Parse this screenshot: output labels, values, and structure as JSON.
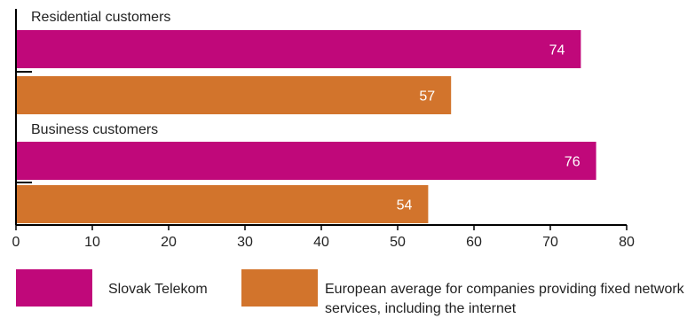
{
  "chart_data": {
    "type": "bar",
    "orientation": "horizontal",
    "groups": [
      {
        "label": "Residential customers",
        "values": [
          74,
          57
        ]
      },
      {
        "label": "Business customers",
        "values": [
          76,
          54
        ]
      }
    ],
    "series": [
      {
        "name": "Slovak Telekom",
        "color": "#c0087a"
      },
      {
        "name": "European average for companies providing fixed network services, including the internet",
        "color": "#d2742c"
      }
    ],
    "xlim": [
      0,
      80
    ],
    "xticks": [
      "0",
      "10",
      "20",
      "30",
      "40",
      "50",
      "60",
      "70",
      "80"
    ],
    "grid": false,
    "legend_position": "bottom",
    "data_label_color": "#ffffff",
    "axis_color": "#000000"
  }
}
